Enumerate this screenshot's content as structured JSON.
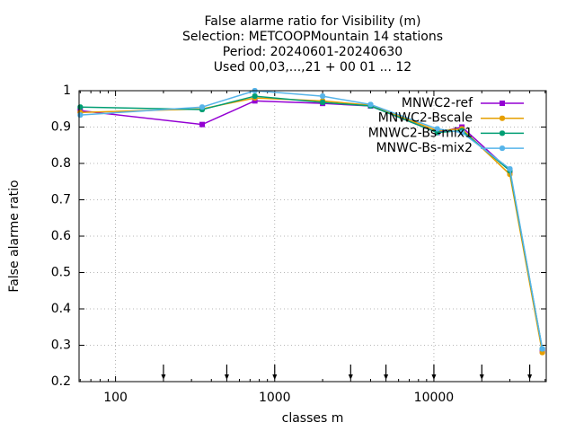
{
  "chart_data": {
    "type": "line",
    "title": [
      "False alarme ratio  for Visibility (m)",
      "Selection: METCOOPMountain     14 stations",
      "Period: 20240601-20240630",
      "Used 00,03,...,21 + 00 01 ... 12"
    ],
    "xlabel": "classes m",
    "ylabel": "False alarme ratio",
    "x": [
      60,
      350,
      750,
      2000,
      4000,
      10500,
      15000,
      30000,
      48000
    ],
    "xlim": [
      59,
      50800
    ],
    "ylim": [
      0.2,
      1
    ],
    "xticks": [
      100,
      1000,
      10000
    ],
    "yticks": [
      0.2,
      0.3,
      0.4,
      0.5,
      0.6,
      0.7,
      0.8,
      0.9,
      1
    ],
    "log_x": true,
    "grid": true,
    "legend": "top-right",
    "arrows_x": [
      200,
      500,
      1000,
      3000,
      5000,
      10000,
      20000,
      40000
    ],
    "series": [
      {
        "name": "MNWC2-ref",
        "color": "#9400d3",
        "values": [
          0.945,
          0.907,
          0.972,
          0.965,
          0.958,
          0.885,
          0.9,
          0.78,
          0.285
        ]
      },
      {
        "name": "MNWC2-Bscale",
        "color": "#e69f00",
        "values": [
          0.94,
          0.95,
          0.98,
          0.972,
          0.96,
          0.89,
          0.895,
          0.77,
          0.28
        ]
      },
      {
        "name": "MNWC2-Bs-mix1",
        "color": "#009e73",
        "values": [
          0.955,
          0.948,
          0.985,
          0.968,
          0.958,
          0.885,
          0.89,
          0.78,
          0.29
        ]
      },
      {
        "name": "MNWC-Bs-mix2",
        "color": "#56b4e9",
        "values": [
          0.933,
          0.955,
          1.0,
          0.985,
          0.962,
          0.895,
          0.885,
          0.785,
          0.29
        ]
      }
    ]
  }
}
